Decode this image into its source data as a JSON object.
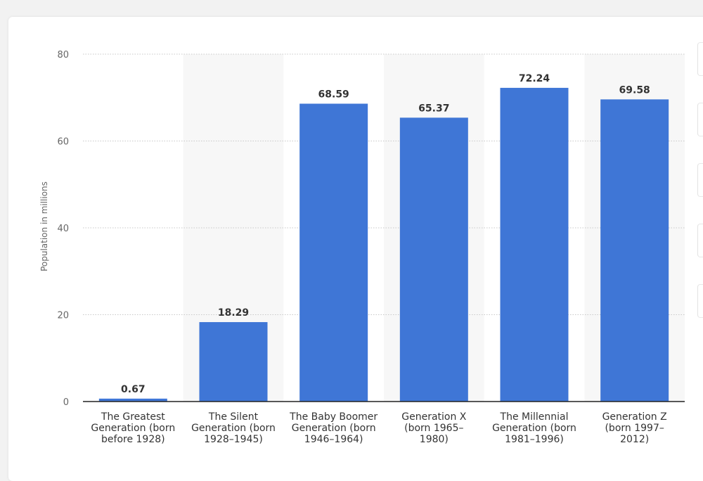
{
  "chart_data": {
    "type": "bar",
    "categories": [
      [
        "The Greatest",
        "Generation (born",
        "before 1928)"
      ],
      [
        "The Silent",
        "Generation (born",
        "1928–1945)"
      ],
      [
        "The Baby Boomer",
        "Generation (born",
        "1946–1964)"
      ],
      [
        "Generation X",
        "(born 1965–",
        "1980)"
      ],
      [
        "The Millennial",
        "Generation (born",
        "1981–1996)"
      ],
      [
        "Generation Z",
        "(born 1997–",
        "2012)"
      ]
    ],
    "values": [
      0.67,
      18.29,
      68.59,
      65.37,
      72.24,
      69.58
    ],
    "value_labels": [
      "0.67",
      "18.29",
      "68.59",
      "65.37",
      "72.24",
      "69.58"
    ],
    "ylabel": "Population in millions",
    "ylim": [
      0,
      80
    ],
    "yticks": [
      0,
      20,
      40,
      60,
      80
    ],
    "grid": true,
    "colors": {
      "bar": "#3f76d6",
      "band": "#f7f7f7",
      "grid": "#c8c8c8",
      "axis": "#222222"
    }
  }
}
